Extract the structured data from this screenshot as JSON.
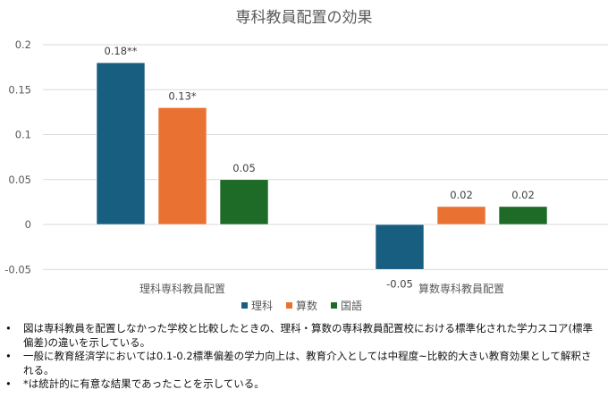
{
  "chart_data": {
    "type": "bar",
    "title": "専科教員配置の効果",
    "categories": [
      "理科専科教員配置",
      "算数専科教員配置"
    ],
    "series": [
      {
        "name": "理科",
        "color": "#175E80",
        "values": [
          0.18,
          -0.05
        ],
        "labels": [
          "0.18**",
          "-0.05"
        ]
      },
      {
        "name": "算数",
        "color": "#E97132",
        "values": [
          0.13,
          0.02
        ],
        "labels": [
          "0.13*",
          "0.02"
        ]
      },
      {
        "name": "国語",
        "color": "#1D6B27",
        "values": [
          0.05,
          0.02
        ],
        "labels": [
          "0.05",
          "0.02"
        ]
      }
    ],
    "yticks": [
      "-0.05",
      "0",
      "0.05",
      "0.1",
      "0.15",
      "0.2"
    ],
    "ylim": [
      -0.05,
      0.2
    ],
    "grid": true,
    "legend_position": "bottom",
    "xlabel": "",
    "ylabel": ""
  },
  "notes": [
    "図は専科教員を配置しなかった学校と比較したときの、理科・算数の専科教員配置校における標準化された学力スコア(標準偏差)の違いを示している。",
    "一般に教育経済学においては0.1-0.2標準偏差の学力向上は、教育介入としては中程度~比較的大きい教育効果として解釈される。",
    "*は統計的に有意な結果であったことを示している。"
  ],
  "bullet": "•"
}
